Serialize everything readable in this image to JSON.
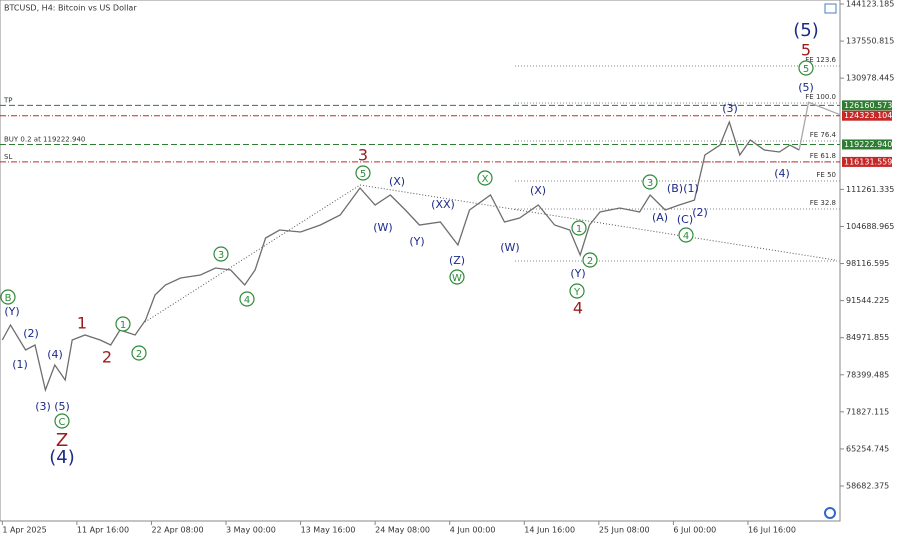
{
  "chart_data": {
    "type": "line",
    "title": "BTCUSD, H4:  Bitcoin vs US Dollar",
    "color": "#6e6e6e",
    "x": [
      0,
      7,
      20,
      28,
      37,
      45,
      54,
      60,
      71,
      84,
      93,
      101,
      114,
      123,
      131,
      140,
      153,
      170,
      183,
      196,
      208,
      217,
      226,
      238,
      256,
      273,
      290,
      307,
      320,
      333,
      346,
      358,
      376,
      391,
      401,
      419,
      431,
      444,
      460,
      474,
      487,
      496,
      504,
      513,
      530,
      547,
      556,
      569,
      581,
      594,
      603,
      616,
      624,
      633,
      642,
      654,
      667,
      676,
      684
    ],
    "values": [
      84560,
      87220,
      82790,
      83680,
      75700,
      80130,
      77470,
      84560,
      85450,
      84560,
      83680,
      86330,
      85450,
      88100,
      92540,
      94310,
      95550,
      96080,
      97320,
      96970,
      94310,
      96970,
      102640,
      104060,
      103710,
      104950,
      106720,
      111500,
      108490,
      110260,
      107600,
      104950,
      105480,
      101400,
      107600,
      110260,
      105480,
      106190,
      108490,
      104950,
      104060,
      99630,
      104950,
      107250,
      107960,
      107250,
      110260,
      107600,
      108490,
      109370,
      117350,
      119120,
      123200,
      117350,
      120010,
      118240,
      117890,
      119120,
      118240
    ],
    "projection": {
      "x": [
        684,
        692,
        719
      ],
      "values": [
        118240,
        126700,
        124500
      ],
      "color": "#a8a8a8"
    },
    "xlim": [
      -2,
      719
    ],
    "xticks": [
      {
        "value": 0,
        "label": "1 Apr 2025"
      },
      {
        "value": 64,
        "label": "11 Apr 16:00"
      },
      {
        "value": 128,
        "label": "22 Apr 08:00"
      },
      {
        "value": 192,
        "label": "3 May 00:00"
      },
      {
        "value": 256,
        "label": "13 May 16:00"
      },
      {
        "value": 320,
        "label": "24 May 08:00"
      },
      {
        "value": 384,
        "label": "4 Jun 00:00"
      },
      {
        "value": 448,
        "label": "14 Jun 16:00"
      },
      {
        "value": 512,
        "label": "25 Jun 08:00"
      },
      {
        "value": 576,
        "label": "6 Jul 00:00"
      },
      {
        "value": 640,
        "label": "16 Jul 16:00"
      }
    ],
    "ylim": [
      52478,
      144832
    ],
    "yticks": [
      144123.185,
      137550.815,
      130978.445,
      111261.335,
      104688.965,
      98116.595,
      91544.225,
      84971.855,
      78399.485,
      71827.115,
      65254.745,
      58682.375
    ],
    "levels": [
      {
        "label": "FE 123.6",
        "value": 133130
      },
      {
        "label": "FE 100.0",
        "value": 126570
      },
      {
        "label": "FE 76.4",
        "value": 119840
      },
      {
        "label": "FE 61.8",
        "value": 116110
      },
      {
        "label": "FE 50",
        "value": 112740
      },
      {
        "label": "FE 32.8",
        "value": 107780
      },
      {
        "value": 98570
      }
    ],
    "orders": [
      {
        "label": "TP",
        "price": 126160.573,
        "color": "#2e7d32"
      },
      {
        "price": 124323.104,
        "color": "#c62828"
      },
      {
        "label": "BUY 0.2 at 119222.940",
        "price": {
          "value": 119222.94,
          "label": "119222.940"
        },
        "color": "#2e7d32"
      },
      {
        "label": "SL",
        "price": 116131.559,
        "color": "#c62828"
      }
    ],
    "annotations": [
      {
        "text": "(5)",
        "color": "#1c2a8a"
      },
      {
        "text": "5",
        "color": "#9b1c1c"
      },
      {
        "text": "5",
        "color": "#2e8b3a",
        "circled": true
      },
      {
        "text": "(5)",
        "color": "#1c2a8a"
      },
      {
        "text": "(3)",
        "color": "#1c2a8a"
      },
      {
        "text": "(4)",
        "color": "#1c2a8a"
      },
      {
        "text": "3",
        "color": "#2e8b3a",
        "circled": true
      },
      {
        "text": "(B)",
        "color": "#1c2a8a"
      },
      {
        "text": "(1)",
        "color": "#1c2a8a"
      },
      {
        "text": "(A)",
        "color": "#1c2a8a"
      },
      {
        "text": "(C)",
        "color": "#1c2a8a"
      },
      {
        "text": "(2)",
        "color": "#1c2a8a"
      },
      {
        "text": "4",
        "color": "#2e8b3a",
        "circled": true
      },
      {
        "text": "3",
        "color": "#9b1c1c"
      },
      {
        "text": "5",
        "color": "#2e8b3a",
        "circled": true
      },
      {
        "text": "(X)",
        "color": "#1c2a8a"
      },
      {
        "text": "(W)",
        "color": "#1c2a8a"
      },
      {
        "text": "(XX)",
        "color": "#1c2a8a"
      },
      {
        "text": "(Y)",
        "color": "#1c2a8a"
      },
      {
        "text": "X",
        "color": "#2e8b3a",
        "circled": true
      },
      {
        "text": "(X)",
        "color": "#1c2a8a"
      },
      {
        "text": "(W)",
        "color": "#1c2a8a"
      },
      {
        "text": "(Z)",
        "color": "#1c2a8a"
      },
      {
        "text": "W",
        "color": "#2e8b3a",
        "circled": true
      },
      {
        "text": "1",
        "color": "#2e8b3a",
        "circled": true
      },
      {
        "text": "2",
        "color": "#2e8b3a",
        "circled": true
      },
      {
        "text": "(Y)",
        "color": "#1c2a8a"
      },
      {
        "text": "Y",
        "color": "#2e8b3a",
        "circled": true
      },
      {
        "text": "4",
        "color": "#9b1c1c"
      },
      {
        "text": "B",
        "color": "#2e8b3a",
        "circled": true
      },
      {
        "text": "(Y)",
        "color": "#1c2a8a"
      },
      {
        "text": "(2)",
        "color": "#1c2a8a"
      },
      {
        "text": "(4)",
        "color": "#1c2a8a"
      },
      {
        "text": "(1)",
        "color": "#1c2a8a"
      },
      {
        "text": "(3)",
        "color": "#1c2a8a"
      },
      {
        "text": "(5)",
        "color": "#1c2a8a"
      },
      {
        "text": "C",
        "color": "#2e8b3a",
        "circled": true
      },
      {
        "text": "Z",
        "color": "#9b1c1c"
      },
      {
        "text": "(4)",
        "color": "#1c2a8a"
      },
      {
        "text": "1",
        "color": "#9b1c1c"
      },
      {
        "text": "2",
        "color": "#9b1c1c"
      },
      {
        "text": "1",
        "color": "#2e8b3a",
        "circled": true
      },
      {
        "text": "2",
        "color": "#2e8b3a",
        "circled": true
      },
      {
        "text": "3",
        "color": "#2e8b3a",
        "circled": true
      },
      {
        "text": "4",
        "color": "#2e8b3a",
        "circled": true
      }
    ]
  }
}
